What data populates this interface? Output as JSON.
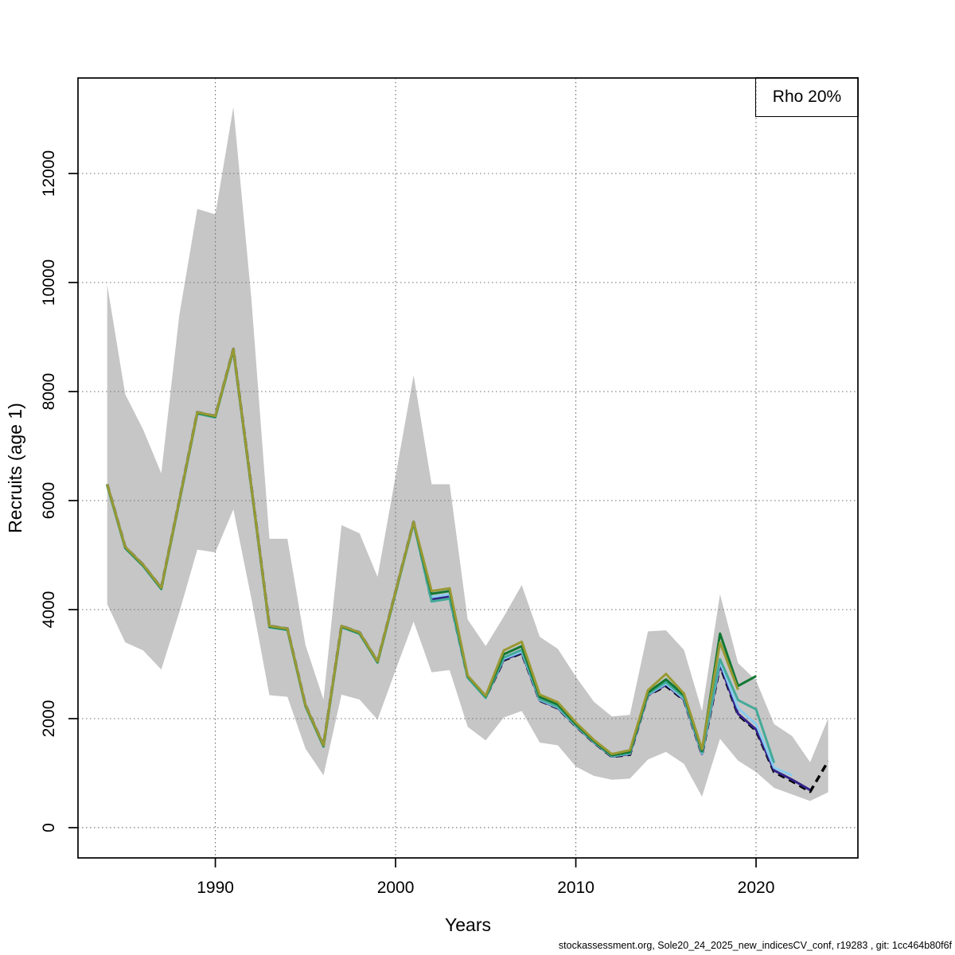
{
  "legend": {
    "label": "Rho 20%"
  },
  "axes": {
    "x": {
      "title": "Years",
      "ticks": [
        1990,
        2000,
        2010,
        2020
      ]
    },
    "y": {
      "title": "Recruits (age 1)",
      "ticks": [
        0,
        2000,
        4000,
        6000,
        8000,
        10000,
        12000
      ]
    }
  },
  "footer": {
    "text": "stockassessment.org, Sole20_24_2025_new_indicesCV_conf, r19283 , git: 1cc464b80f6f"
  },
  "colors": {
    "band": "#c6c6c6",
    "base": "#000000",
    "peel_2023": "#332288",
    "peel_2022": "#88CCEE",
    "peel_2021": "#44AA99",
    "peel_2020": "#117733",
    "peel_2019": "#999933",
    "grid": "#757575"
  },
  "chart_data": {
    "type": "line",
    "title": "",
    "xlabel": "Years",
    "ylabel": "Recruits (age 1)",
    "xlim": [
      1982.38,
      2025.65
    ],
    "ylim": [
      -555,
      13752
    ],
    "grid": "dotted",
    "legend": {
      "label": "Rho 20%",
      "position": "top-right"
    },
    "band": {
      "name": "base-run-confidence",
      "color": "#c6c6c6",
      "start_year": 1984,
      "upper": [
        9960,
        7950,
        7300,
        6500,
        9400,
        11350,
        11250,
        13220,
        9700,
        5300,
        5300,
        3350,
        2350,
        5550,
        5400,
        4600,
        6450,
        8300,
        6300,
        6300,
        3820,
        3330,
        3870,
        4450,
        3500,
        3280,
        2770,
        2310,
        2040,
        2070,
        3600,
        3620,
        3260,
        2140,
        4280,
        3020,
        2700,
        1900,
        1680,
        1200,
        2005
      ],
      "lower": [
        4100,
        3400,
        3250,
        2900,
        3950,
        5100,
        5050,
        5840,
        4200,
        2430,
        2400,
        1450,
        960,
        2440,
        2350,
        1980,
        2890,
        3780,
        2850,
        2890,
        1850,
        1600,
        2020,
        2140,
        1560,
        1510,
        1120,
        950,
        880,
        900,
        1250,
        1390,
        1170,
        570,
        1630,
        1230,
        1020,
        730,
        610,
        490,
        650
      ]
    },
    "series": [
      {
        "name": "base-run",
        "color": "#000000",
        "dash": "9 6",
        "width": 3.4,
        "start_year": 1984,
        "values": [
          6300,
          5150,
          4820,
          4400,
          6000,
          7620,
          7550,
          8780,
          6250,
          3700,
          3650,
          2250,
          1510,
          3700,
          3580,
          3050,
          4330,
          5610,
          4160,
          4210,
          2760,
          2390,
          3070,
          3200,
          2330,
          2190,
          1860,
          1560,
          1300,
          1340,
          2430,
          2600,
          2340,
          1340,
          2970,
          2070,
          1780,
          1020,
          850,
          660,
          1220
        ]
      },
      {
        "name": "peel-2023",
        "color": "#332288",
        "dash": "",
        "width": 3,
        "start_year": 1984,
        "values": [
          6300,
          5150,
          4820,
          4400,
          6000,
          7620,
          7550,
          8780,
          6250,
          3700,
          3650,
          2250,
          1510,
          3700,
          3580,
          3050,
          4330,
          5610,
          4190,
          4240,
          2765,
          2395,
          3080,
          3210,
          2335,
          2195,
          1865,
          1565,
          1305,
          1350,
          2435,
          2620,
          2350,
          1350,
          3000,
          2090,
          1800,
          1050,
          880,
          690
        ]
      },
      {
        "name": "peel-2022",
        "color": "#88CCEE",
        "dash": "",
        "width": 3,
        "start_year": 1984,
        "values": [
          6300,
          5150,
          4820,
          4400,
          6000,
          7620,
          7550,
          8780,
          6250,
          3700,
          3650,
          2250,
          1510,
          3700,
          3580,
          3050,
          4330,
          5610,
          4230,
          4280,
          2770,
          2400,
          3100,
          3230,
          2345,
          2205,
          1870,
          1570,
          1310,
          1360,
          2440,
          2640,
          2365,
          1360,
          3040,
          2190,
          1900,
          1100,
          960
        ]
      },
      {
        "name": "peel-2021",
        "color": "#44AA99",
        "dash": "",
        "width": 3,
        "start_year": 1984,
        "values": [
          6275,
          5125,
          4795,
          4375,
          5975,
          7595,
          7525,
          8755,
          6225,
          3675,
          3625,
          2225,
          1485,
          3675,
          3555,
          3025,
          4305,
          5585,
          4150,
          4200,
          2750,
          2380,
          3120,
          3260,
          2360,
          2220,
          1880,
          1575,
          1315,
          1370,
          2450,
          2670,
          2390,
          1380,
          3090,
          2340,
          2170,
          1190
        ]
      },
      {
        "name": "peel-2020",
        "color": "#117733",
        "dash": "",
        "width": 3,
        "start_year": 1984,
        "values": [
          6290,
          5140,
          4810,
          4390,
          5990,
          7610,
          7540,
          8770,
          6240,
          3690,
          3640,
          2240,
          1500,
          3690,
          3570,
          3040,
          4320,
          5600,
          4290,
          4340,
          2780,
          2410,
          3180,
          3330,
          2400,
          2260,
          1900,
          1590,
          1330,
          1390,
          2480,
          2720,
          2430,
          1410,
          3560,
          2600,
          2780
        ]
      },
      {
        "name": "peel-2019",
        "color": "#999933",
        "dash": "",
        "width": 3,
        "start_year": 1984,
        "values": [
          6300,
          5150,
          4820,
          4400,
          6000,
          7620,
          7550,
          8780,
          6250,
          3700,
          3650,
          2250,
          1510,
          3700,
          3580,
          3050,
          4330,
          5610,
          4340,
          4390,
          2790,
          2420,
          3250,
          3410,
          2440,
          2300,
          1930,
          1610,
          1350,
          1420,
          2520,
          2820,
          2460,
          1440,
          3400,
          2530
        ]
      }
    ]
  }
}
